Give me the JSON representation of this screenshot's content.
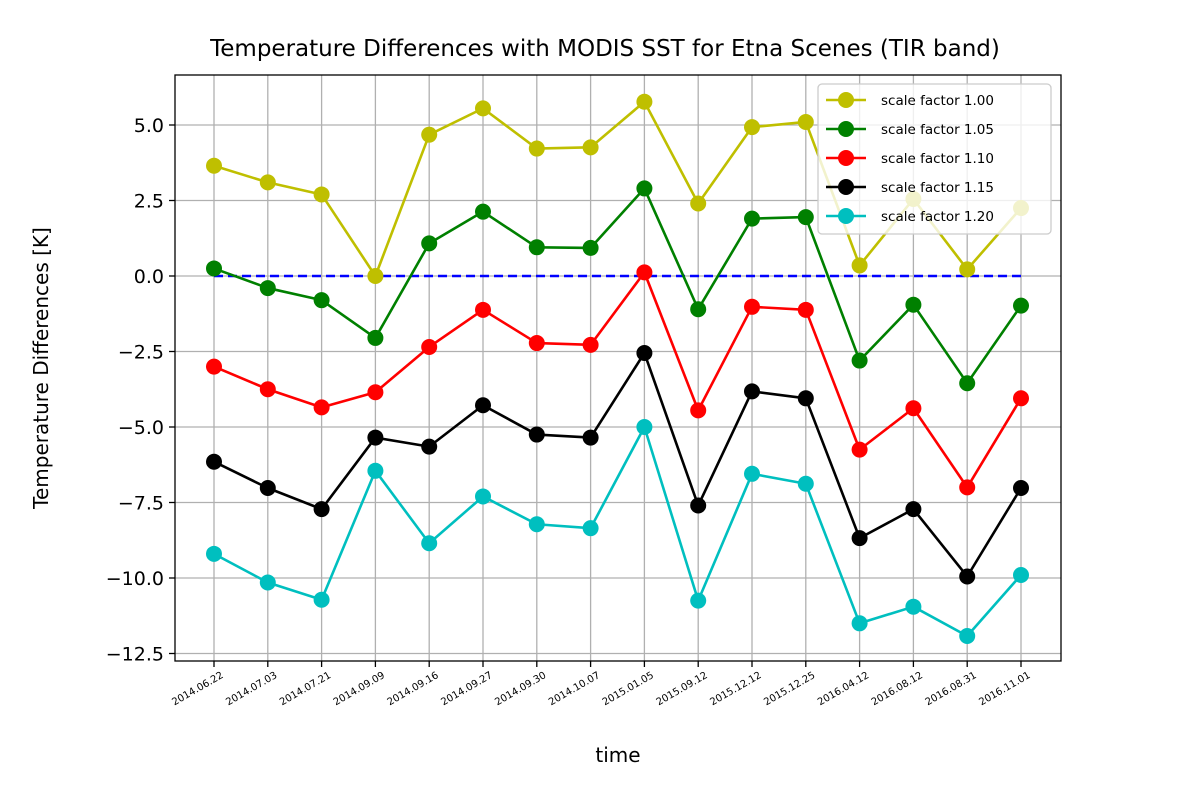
{
  "chart_data": {
    "type": "line",
    "title": "Temperature Differences with MODIS SST for Etna Scenes (TIR band)",
    "xlabel": "time",
    "ylabel": "Temperature Differences [K]",
    "ylim": [
      -12.8,
      6.7
    ],
    "yticks": [
      5.0,
      2.5,
      0.0,
      -2.5,
      -5.0,
      -7.5,
      -10.0,
      -12.5
    ],
    "ytick_labels": [
      "5.0",
      "2.5",
      "0.0",
      "−2.5",
      "−5.0",
      "−7.5",
      "−10.0",
      "−12.5"
    ],
    "grid": true,
    "legend_position": "top-right",
    "categories": [
      "2014.06.22",
      "2014.07.03",
      "2014.07.21",
      "2014.09.09",
      "2014.09.16",
      "2014.09.27",
      "2014.09.30",
      "2014.10.07",
      "2015.01.05",
      "2015.09.12",
      "2015.12.12",
      "2015.12.25",
      "2016.04.12",
      "2016.08.12",
      "2016.08.31",
      "2016.11.01"
    ],
    "reference_line": {
      "value": 0.0,
      "color": "#0000ff",
      "style": "dashed"
    },
    "series": [
      {
        "name": "scale factor 1.00",
        "color": "#bfbf00",
        "values": [
          3.65,
          3.1,
          2.7,
          0.0,
          4.68,
          5.55,
          4.22,
          4.26,
          5.77,
          2.4,
          4.93,
          5.1,
          0.35,
          2.55,
          0.22,
          2.25
        ]
      },
      {
        "name": "scale factor 1.05",
        "color": "#008000",
        "values": [
          0.25,
          -0.4,
          -0.8,
          -2.05,
          1.08,
          2.13,
          0.95,
          0.93,
          2.9,
          -1.1,
          1.9,
          1.95,
          -2.8,
          -0.95,
          -3.55,
          -0.98
        ]
      },
      {
        "name": "scale factor 1.10",
        "color": "#ff0000",
        "values": [
          -3.0,
          -3.75,
          -4.35,
          -3.85,
          -2.35,
          -1.12,
          -2.22,
          -2.28,
          0.12,
          -4.45,
          -1.02,
          -1.12,
          -5.75,
          -4.38,
          -7.0,
          -4.05
        ]
      },
      {
        "name": "scale factor 1.15",
        "color": "#000000",
        "values": [
          -6.15,
          -7.02,
          -7.72,
          -5.35,
          -5.65,
          -4.28,
          -5.25,
          -5.35,
          -2.55,
          -7.6,
          -3.82,
          -4.05,
          -8.68,
          -7.72,
          -9.95,
          -7.02
        ]
      },
      {
        "name": "scale factor 1.20",
        "color": "#00bfbf",
        "values": [
          -9.2,
          -10.15,
          -10.72,
          -6.45,
          -8.85,
          -7.3,
          -8.22,
          -8.35,
          -5.0,
          -10.75,
          -6.55,
          -6.88,
          -11.5,
          -10.95,
          -11.92,
          -9.9
        ]
      }
    ]
  }
}
